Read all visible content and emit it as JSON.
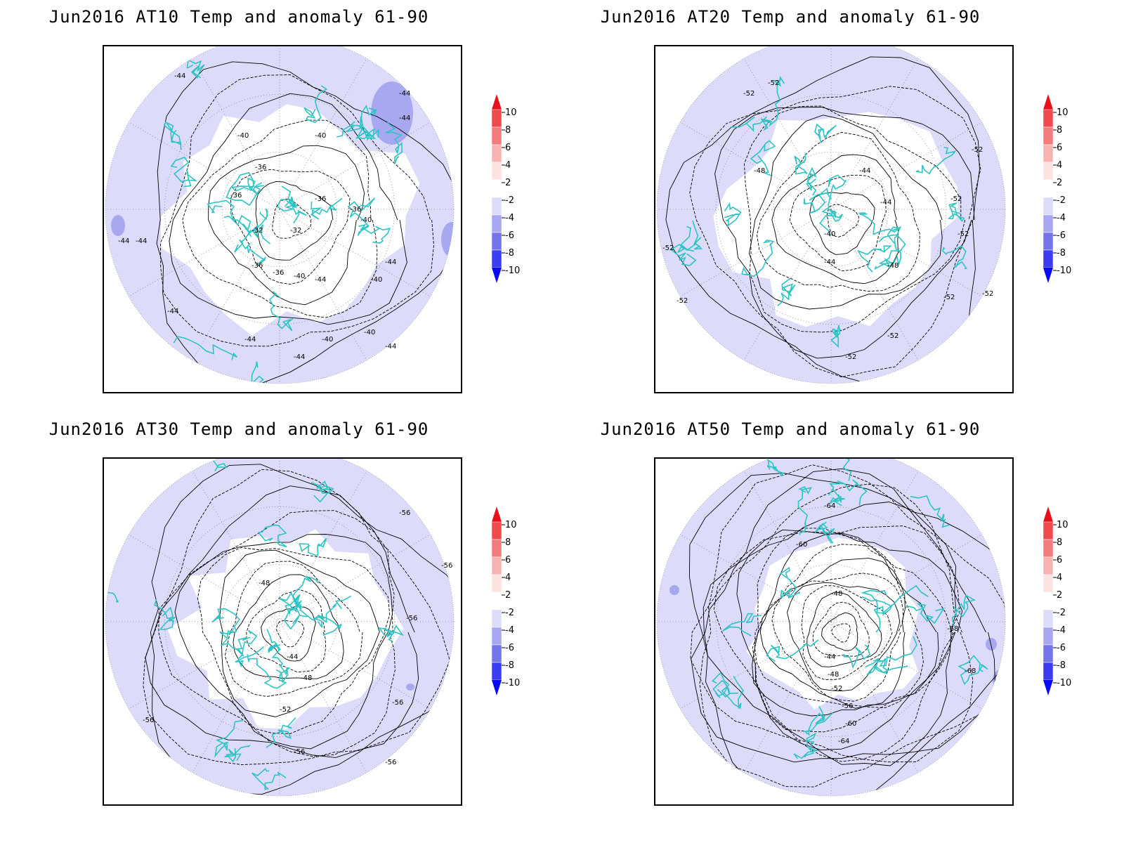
{
  "panels": [
    {
      "title": "Jun2016 AT10 Temp and anomaly 61-90",
      "contour_labels": [
        "-44",
        "-44",
        "-44",
        "-40",
        "-40",
        "-36",
        "-36",
        "-36",
        "-36",
        "-40",
        "-32",
        "-32",
        "-36",
        "-36",
        "-40",
        "-44",
        "-44",
        "-44",
        "-44",
        "-40",
        "-44",
        "-44",
        "-40",
        "-40",
        "-44",
        "-44"
      ]
    },
    {
      "title": "Jun2016 AT20 Temp and anomaly 61-90",
      "contour_labels": [
        "-52",
        "-52",
        "-48",
        "-44",
        "-44",
        "-40",
        "-44",
        "-48",
        "-52",
        "-52",
        "-52",
        "-52",
        "-52",
        "-52",
        "-52",
        "-52",
        "-52"
      ]
    },
    {
      "title": "Jun2016 AT30 Temp and anomaly 61-90",
      "contour_labels": [
        "-56",
        "-56",
        "-56",
        "-48",
        "-44",
        "-48",
        "-52",
        "-56",
        "-56",
        "-56",
        "-56"
      ]
    },
    {
      "title": "Jun2016 AT50 Temp and anomaly 61-90",
      "contour_labels": [
        "-64",
        "-60",
        "-48",
        "-44",
        "-48",
        "-52",
        "-56",
        "-60",
        "-64",
        "-68",
        "-68"
      ]
    }
  ],
  "colorbar": {
    "labels": [
      "10",
      "8",
      "6",
      "4",
      "2",
      "-2",
      "-4",
      "-6",
      "-8",
      "-10"
    ],
    "colors": [
      "#e8101a",
      "#ef4a4d",
      "#f47b7b",
      "#f9b2b2",
      "#fde2e2",
      "#ffffff",
      "#dcdcfa",
      "#a8a8f0",
      "#7474e8",
      "#3c3cf0",
      "#0a0af5"
    ]
  },
  "colors": {
    "anomaly_neg_light": "#dcdcfa",
    "anomaly_neg_mid": "#a8a8f0",
    "coastline": "#2ec4c4",
    "contour": "#000000"
  }
}
